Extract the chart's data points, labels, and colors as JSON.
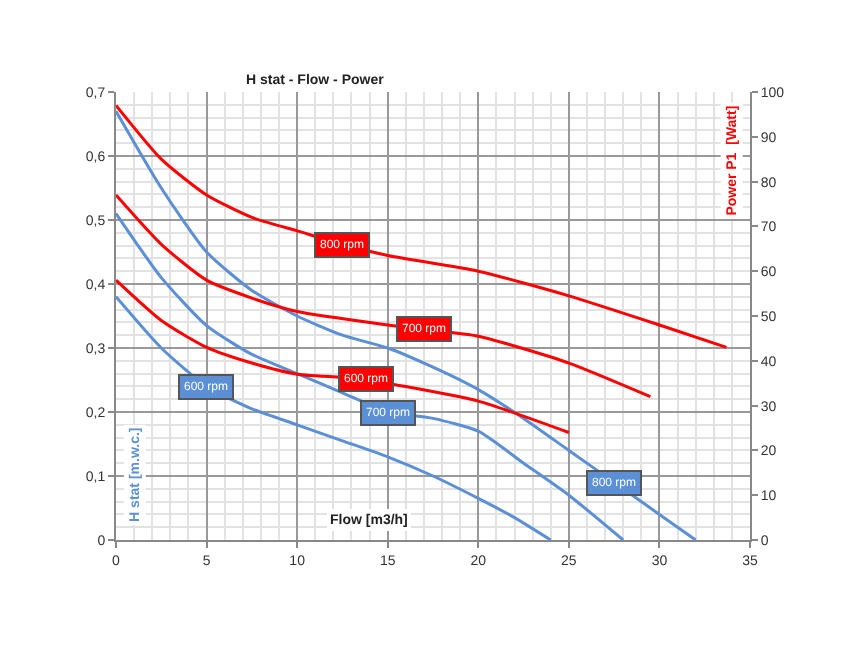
{
  "chart_data": {
    "type": "line",
    "title": "H stat - Flow - Power",
    "xlabel": "Flow [m3/h]",
    "ylabel": "H stat [m.w.c.]",
    "y2label": "Power P1  [Watt]",
    "xlim": [
      0,
      35
    ],
    "xticks": [
      0,
      5,
      10,
      15,
      20,
      25,
      30,
      35
    ],
    "ylim": [
      0,
      0.7
    ],
    "yticks": [
      0,
      {
        "value": 0.1,
        "label": "0,1"
      },
      {
        "value": 0.2,
        "label": "0,2"
      },
      {
        "value": 0.3,
        "label": "0,3"
      },
      {
        "value": 0.4,
        "label": "0,4"
      },
      {
        "value": 0.5,
        "label": "0,5"
      },
      {
        "value": 0.6,
        "label": "0,6"
      },
      {
        "value": 0.7,
        "label": "0,7"
      }
    ],
    "y2lim": [
      0,
      100
    ],
    "y2ticks": [
      0,
      10,
      20,
      30,
      40,
      50,
      60,
      70,
      80,
      90,
      100
    ],
    "grid": true,
    "marker": "none",
    "line_style": "solid",
    "series": [
      {
        "name": "600 rpm",
        "color": "#5b8fd6",
        "x": [
          0,
          2.5,
          5,
          7.5,
          10,
          12.5,
          15,
          17.5,
          20,
          22,
          24
        ],
        "values": [
          0.38,
          0.3,
          0.24,
          0.205,
          0.18,
          0.155,
          0.13,
          0.1,
          0.065,
          0.035,
          0
        ]
      },
      {
        "name": "700 rpm",
        "color": "#5b8fd6",
        "x": [
          0,
          2.5,
          5,
          7.5,
          10,
          12.5,
          15,
          17.5,
          20,
          22.5,
          25,
          28
        ],
        "values": [
          0.51,
          0.41,
          0.335,
          0.29,
          0.26,
          0.23,
          0.2,
          0.19,
          0.17,
          0.12,
          0.07,
          0
        ]
      },
      {
        "name": "800 rpm",
        "color": "#5b8fd6",
        "x": [
          0,
          2.5,
          5,
          7.5,
          10,
          12.5,
          15,
          17.5,
          20,
          22.5,
          25,
          27.5,
          30,
          32
        ],
        "values": [
          0.67,
          0.55,
          0.45,
          0.39,
          0.35,
          0.32,
          0.3,
          0.27,
          0.235,
          0.19,
          0.14,
          0.09,
          0.04,
          0
        ]
      },
      {
        "name": "600 rpm",
        "color": "#ff0000",
        "axis": "y2",
        "x": [
          0,
          2.5,
          5,
          7.5,
          10,
          13.8,
          15,
          20,
          25
        ],
        "values": [
          58,
          49,
          43,
          39.5,
          37,
          36,
          35,
          31,
          24
        ]
      },
      {
        "name": "700 rpm",
        "color": "#ff0000",
        "axis": "y2",
        "x": [
          0,
          2.5,
          5,
          7.5,
          10,
          15,
          17,
          20,
          25,
          29.5
        ],
        "values": [
          77,
          66,
          58,
          54,
          51,
          48,
          47,
          45.5,
          39.5,
          32
        ]
      },
      {
        "name": "800 rpm",
        "color": "#ff0000",
        "axis": "y2",
        "x": [
          0,
          2.5,
          5,
          7.5,
          10,
          12.5,
          15,
          20,
          25,
          30,
          33.7
        ],
        "values": [
          97,
          85,
          77,
          72,
          69,
          66,
          63.5,
          60,
          54.5,
          48,
          43
        ]
      }
    ]
  }
}
